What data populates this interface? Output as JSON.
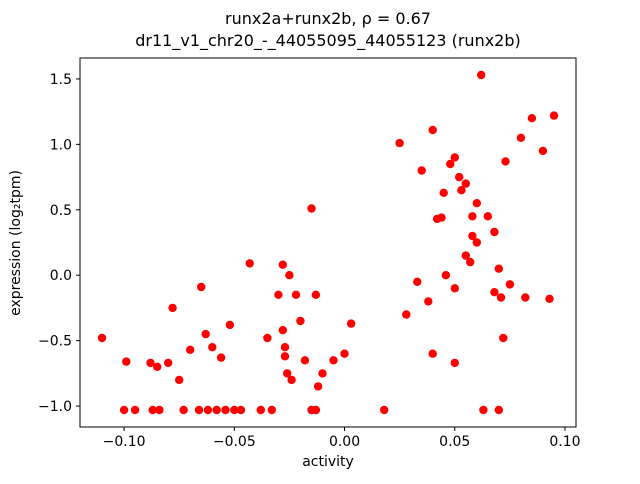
{
  "figure": {
    "title_line1": "runx2a+runx2b, ρ = 0.67",
    "title_line2": "dr11_v1_chr20_-_44055095_44055123 (runx2b)",
    "xlabel": "activity",
    "ylabel": "expression (log₂tpm)"
  },
  "chart_data": {
    "type": "scatter",
    "title": "runx2a+runx2b, ρ = 0.67\ndr11_v1_chr20_-_44055095_44055123 (runx2b)",
    "rho": 0.67,
    "xlabel": "activity",
    "ylabel": "expression (log2 tpm)",
    "marker_color": "#ff0000",
    "background_color": "#ffffff",
    "axis_color": "#000000",
    "grid": false,
    "legend": null,
    "xlim": [
      -0.12,
      0.105
    ],
    "ylim": [
      -1.16,
      1.66
    ],
    "xticks": [
      -0.1,
      -0.05,
      0.0,
      0.05,
      0.1
    ],
    "xtick_labels": [
      "−0.10",
      "−0.05",
      "0.00",
      "0.05",
      "0.10"
    ],
    "yticks": [
      -1.0,
      -0.5,
      0.0,
      0.5,
      1.0,
      1.5
    ],
    "ytick_labels": [
      "−1.0",
      "−0.5",
      "0.0",
      "0.5",
      "1.0",
      "1.5"
    ],
    "points": [
      [
        -0.11,
        -0.48
      ],
      [
        -0.1,
        -1.03
      ],
      [
        -0.099,
        -0.66
      ],
      [
        -0.095,
        -1.03
      ],
      [
        -0.088,
        -0.67
      ],
      [
        -0.087,
        -1.03
      ],
      [
        -0.085,
        -0.7
      ],
      [
        -0.084,
        -1.03
      ],
      [
        -0.08,
        -0.67
      ],
      [
        -0.078,
        -0.25
      ],
      [
        -0.075,
        -0.8
      ],
      [
        -0.073,
        -1.03
      ],
      [
        -0.07,
        -0.57
      ],
      [
        -0.066,
        -1.03
      ],
      [
        -0.065,
        -0.09
      ],
      [
        -0.063,
        -0.45
      ],
      [
        -0.062,
        -1.03
      ],
      [
        -0.06,
        -0.55
      ],
      [
        -0.058,
        -1.03
      ],
      [
        -0.056,
        -0.63
      ],
      [
        -0.054,
        -1.03
      ],
      [
        -0.052,
        -0.38
      ],
      [
        -0.05,
        -1.03
      ],
      [
        -0.047,
        -1.03
      ],
      [
        -0.043,
        0.09
      ],
      [
        -0.038,
        -1.03
      ],
      [
        -0.035,
        -0.48
      ],
      [
        -0.033,
        -1.03
      ],
      [
        -0.03,
        -0.15
      ],
      [
        -0.028,
        0.08
      ],
      [
        -0.028,
        -0.42
      ],
      [
        -0.027,
        -0.55
      ],
      [
        -0.027,
        -0.62
      ],
      [
        -0.026,
        -0.75
      ],
      [
        -0.025,
        0.0
      ],
      [
        -0.024,
        -0.8
      ],
      [
        -0.022,
        -0.15
      ],
      [
        -0.02,
        -0.35
      ],
      [
        -0.018,
        -0.65
      ],
      [
        -0.015,
        0.51
      ],
      [
        -0.015,
        -1.03
      ],
      [
        -0.013,
        -0.15
      ],
      [
        -0.013,
        -1.03
      ],
      [
        -0.012,
        -0.85
      ],
      [
        -0.01,
        -0.75
      ],
      [
        -0.005,
        -0.65
      ],
      [
        0.0,
        -0.6
      ],
      [
        0.003,
        -0.37
      ],
      [
        0.018,
        -1.03
      ],
      [
        0.025,
        1.01
      ],
      [
        0.028,
        -0.3
      ],
      [
        0.033,
        -0.05
      ],
      [
        0.035,
        0.8
      ],
      [
        0.038,
        -0.2
      ],
      [
        0.04,
        1.11
      ],
      [
        0.04,
        -0.6
      ],
      [
        0.042,
        0.43
      ],
      [
        0.044,
        0.44
      ],
      [
        0.045,
        0.63
      ],
      [
        0.046,
        0.0
      ],
      [
        0.048,
        0.85
      ],
      [
        0.05,
        0.9
      ],
      [
        0.05,
        -0.1
      ],
      [
        0.05,
        -0.67
      ],
      [
        0.052,
        0.75
      ],
      [
        0.053,
        0.65
      ],
      [
        0.055,
        0.7
      ],
      [
        0.055,
        0.15
      ],
      [
        0.057,
        0.1
      ],
      [
        0.058,
        0.3
      ],
      [
        0.058,
        0.45
      ],
      [
        0.06,
        0.55
      ],
      [
        0.06,
        0.25
      ],
      [
        0.062,
        1.53
      ],
      [
        0.063,
        -1.03
      ],
      [
        0.065,
        0.45
      ],
      [
        0.068,
        0.33
      ],
      [
        0.068,
        -0.13
      ],
      [
        0.07,
        0.05
      ],
      [
        0.07,
        -1.03
      ],
      [
        0.071,
        -0.17
      ],
      [
        0.072,
        -0.48
      ],
      [
        0.073,
        0.87
      ],
      [
        0.075,
        -0.07
      ],
      [
        0.08,
        1.05
      ],
      [
        0.082,
        -0.17
      ],
      [
        0.085,
        1.2
      ],
      [
        0.09,
        0.95
      ],
      [
        0.093,
        -0.18
      ],
      [
        0.095,
        1.22
      ]
    ]
  }
}
